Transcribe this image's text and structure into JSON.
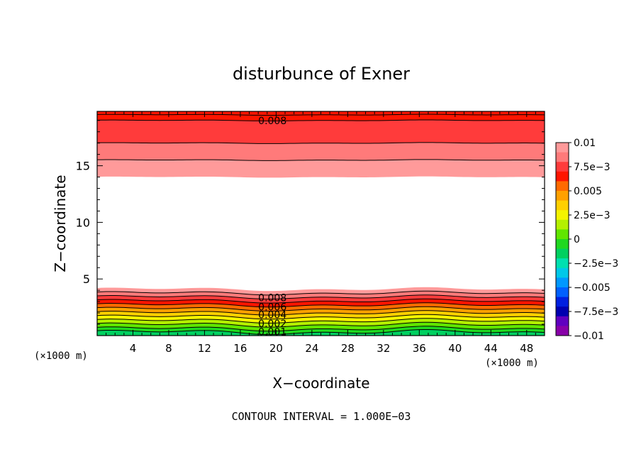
{
  "chart_data": {
    "type": "heatmap",
    "title": "disturbunce of Exner",
    "xlabel": "X−coordinate",
    "ylabel": "Z−coordinate",
    "x_unit_left": "(×1000 m)",
    "x_unit_right": "(×1000 m)",
    "xlim": [
      0,
      50
    ],
    "ylim": [
      0,
      19.8
    ],
    "x_ticks": [
      4,
      8,
      12,
      16,
      20,
      24,
      28,
      32,
      36,
      40,
      44,
      48
    ],
    "y_ticks": [
      5,
      10,
      15
    ],
    "footer": "CONTOUR INTERVAL = 1.000E−03",
    "colorbar": {
      "labels": [
        "0.01",
        "7.5e−3",
        "0.005",
        "2.5e−3",
        "0",
        "−2.5e−3",
        "−0.005",
        "−7.5e−3",
        "−0.01"
      ],
      "colors": [
        "#ff9a9a",
        "#ff7a7a",
        "#ff3b3b",
        "#ff1500",
        "#ff6a00",
        "#ffa000",
        "#ffd000",
        "#f4f400",
        "#b4f000",
        "#60e600",
        "#20d820",
        "#00d060",
        "#00e0b0",
        "#00c8e8",
        "#0098ff",
        "#0060ff",
        "#0020e0",
        "#0000b0",
        "#6000c0",
        "#8800a8"
      ]
    },
    "upper_bands": [
      {
        "z_low": 19.5,
        "z_high": 19.8,
        "color": "#ff1500"
      },
      {
        "z_low": 19.0,
        "z_high": 19.5,
        "color": "#ff1500"
      },
      {
        "z_low": 17.0,
        "z_high": 19.0,
        "color": "#ff3b3b"
      },
      {
        "z_low": 15.5,
        "z_high": 17.0,
        "color": "#ff7a7a"
      },
      {
        "z_low": 14.0,
        "z_high": 15.5,
        "color": "#ff9a9a"
      }
    ],
    "lower_levels": [
      {
        "z": 4.1,
        "color": "#ff9a9a"
      },
      {
        "z": 3.75,
        "color": "#ff7a7a"
      },
      {
        "z": 3.4,
        "color": "#ff3b3b"
      },
      {
        "z": 3.05,
        "color": "#ff1500"
      },
      {
        "z": 2.7,
        "color": "#ff6a00"
      },
      {
        "z": 2.35,
        "color": "#ffa000"
      },
      {
        "z": 2.0,
        "color": "#ffd000"
      },
      {
        "z": 1.65,
        "color": "#f4f400"
      },
      {
        "z": 1.3,
        "color": "#b4f000"
      },
      {
        "z": 0.95,
        "color": "#60e600"
      },
      {
        "z": 0.6,
        "color": "#20d820"
      },
      {
        "z": 0.3,
        "color": "#00d060"
      }
    ],
    "upper_contour_z": [
      19.5,
      19.0,
      17.0,
      15.5
    ],
    "contour_labels": [
      {
        "text": "0.008",
        "x": 18,
        "z": 19.0
      },
      {
        "text": "0.008",
        "x": 18,
        "z": 3.35
      },
      {
        "text": "0.006",
        "x": 18,
        "z": 2.55
      },
      {
        "text": "0.004",
        "x": 18,
        "z": 1.85
      },
      {
        "text": "0.002",
        "x": 18,
        "z": 1.05
      },
      {
        "text": "0.001",
        "x": 18,
        "z": 0.35
      }
    ]
  }
}
